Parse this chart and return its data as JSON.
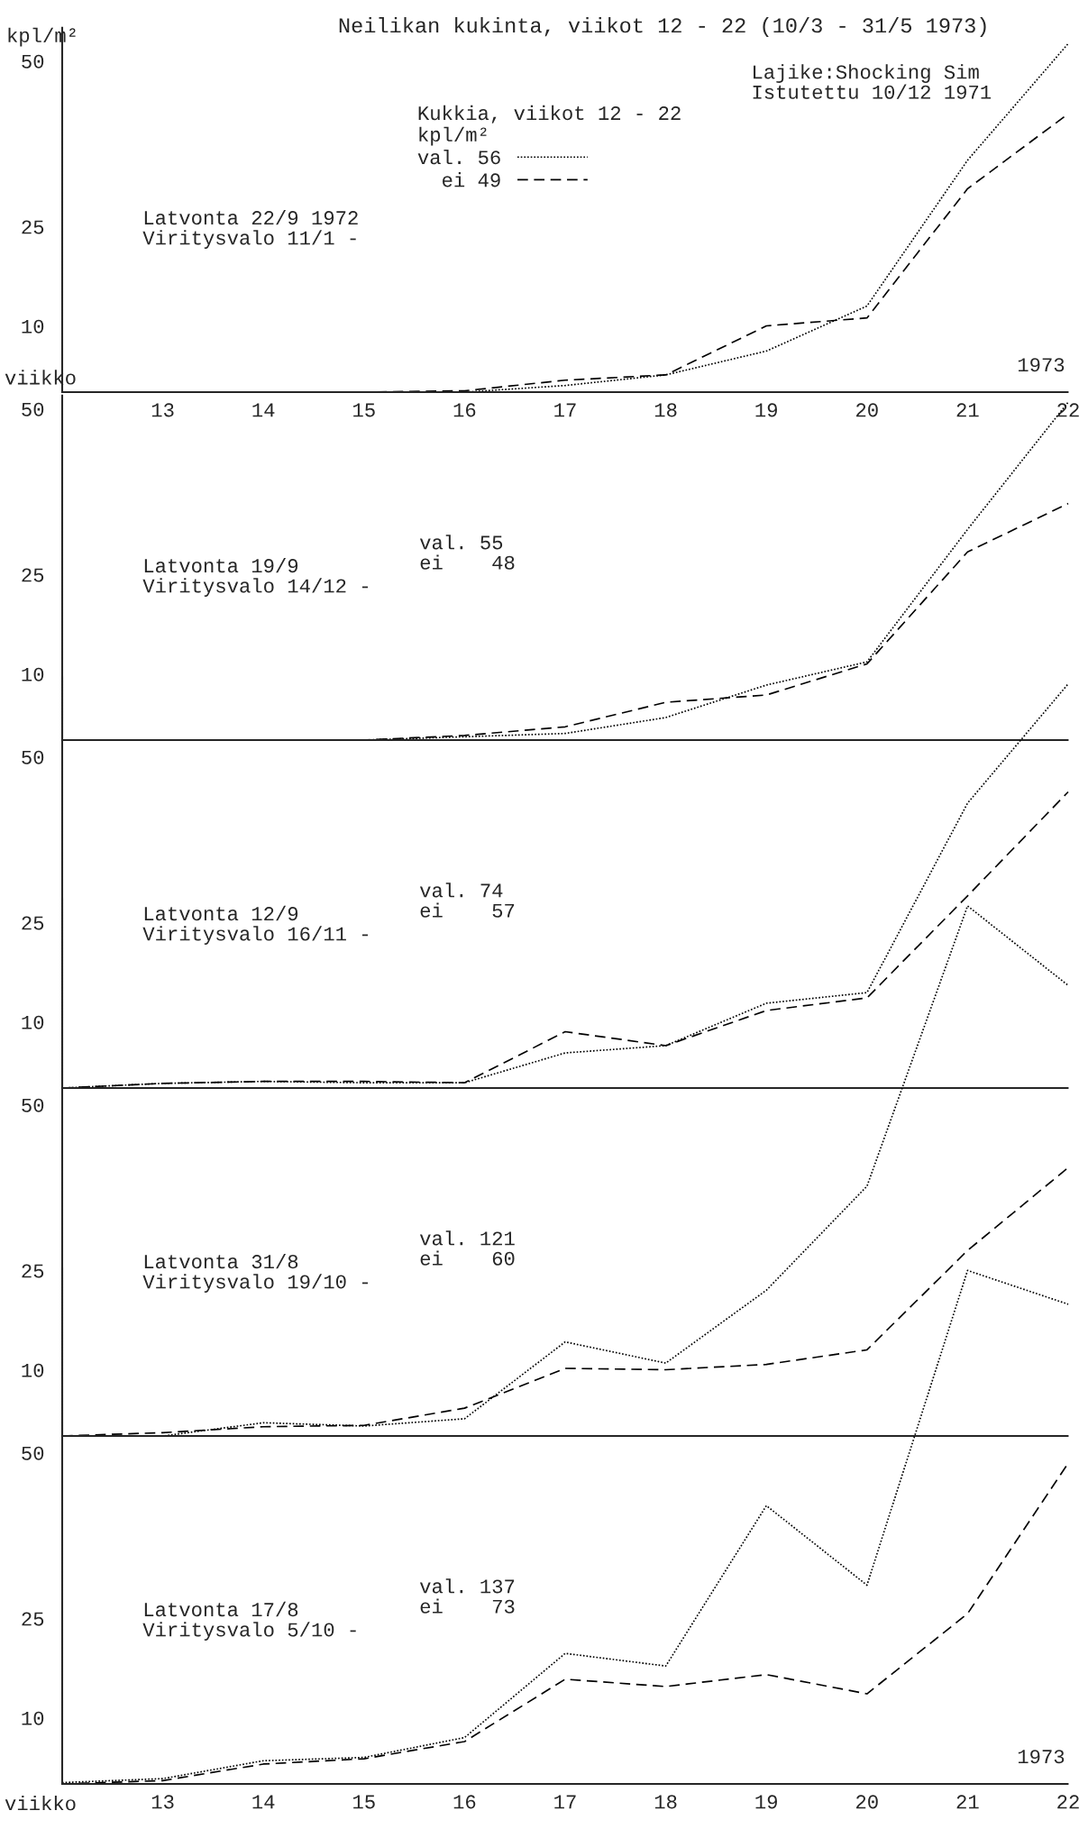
{
  "chart_data": [
    {
      "type": "line",
      "title": "Neilikan kukinta, viikot 12 - 22 (10/3 - 31/5 1973)",
      "ylabel": "kpl/m²",
      "xlabel": "viikko",
      "legend_title": "Kukkia, viikot 12 - 22\nkpl/m²",
      "legend": "top",
      "x": [
        12,
        13,
        14,
        15,
        16,
        17,
        18,
        19,
        20,
        21,
        22
      ],
      "xlim": [
        12,
        22
      ],
      "xticks": [
        13,
        14,
        15,
        16,
        17,
        18,
        19,
        20,
        21,
        22
      ],
      "ylim": [
        0,
        55
      ],
      "yticks": [
        10,
        25,
        50
      ],
      "grid": false,
      "series": [
        {
          "name": "val. 56",
          "color": "#000000",
          "line_style": "dotted",
          "values": [
            0,
            0,
            0,
            0,
            0,
            1,
            2.6,
            6.2,
            13,
            35,
            52.6
          ]
        },
        {
          "name": "ei 49",
          "color": "#000000",
          "line_style": "dashed",
          "values": [
            0,
            0,
            0,
            0,
            0.2,
            1.8,
            2.6,
            10,
            11.2,
            30.7,
            42
          ]
        }
      ],
      "annotations": [
        "Lajike:Shocking Sim\nIstutettu 10/12 1971",
        "Latvonta 22/9 1972\nViritysvalo 11/1 -",
        "1973"
      ]
    },
    {
      "type": "line",
      "x": [
        12,
        13,
        14,
        15,
        16,
        17,
        18,
        19,
        20,
        21,
        22
      ],
      "xlim": [
        12,
        22
      ],
      "xticks": [
        13,
        14,
        15,
        16,
        17,
        18,
        19,
        20,
        21,
        22
      ],
      "ylim": [
        0,
        52
      ],
      "yticks": [
        10,
        25,
        50
      ],
      "grid": false,
      "tick_labels": "y",
      "series": [
        {
          "color": "#000000",
          "line_style": "dotted",
          "values": [
            0,
            0,
            0,
            0,
            0.5,
            1,
            3.4,
            8.3,
            11.8,
            31.8,
            51
          ]
        },
        {
          "color": "#000000",
          "line_style": "dashed",
          "values": [
            0,
            0,
            0,
            0,
            0.7,
            2,
            5.7,
            6.8,
            11.5,
            28.4,
            35.7
          ]
        }
      ],
      "annotations": [
        "Latvonta 19/9\nViritysvalo 14/12 -",
        "val. 55\nei    48"
      ]
    },
    {
      "type": "line",
      "x": [
        12,
        13,
        14,
        15,
        16,
        17,
        18,
        19,
        20,
        21,
        22
      ],
      "xlim": [
        12,
        22
      ],
      "xticks": [
        13,
        14,
        15,
        16,
        17,
        18,
        19,
        20,
        21,
        22
      ],
      "ylim": [
        0,
        62
      ],
      "yticks": [
        10,
        25,
        50
      ],
      "grid": false,
      "tick_labels": "y",
      "series": [
        {
          "color": "#000000",
          "line_style": "dotted",
          "values": [
            0,
            0.7,
            1,
            0.8,
            0.8,
            5.3,
            6.4,
            12.8,
            14.4,
            43,
            61
          ]
        },
        {
          "color": "#000000",
          "line_style": "dashed",
          "values": [
            0,
            0.7,
            1,
            1,
            0.8,
            8.5,
            6.4,
            11.7,
            13.6,
            29,
            44.7
          ]
        }
      ],
      "annotations": [
        "Latvonta 12/9\nViritysvalo 16/11 -",
        "val. 74\nei    57"
      ]
    },
    {
      "type": "line",
      "x": [
        12,
        13,
        14,
        15,
        16,
        17,
        18,
        19,
        20,
        21,
        22
      ],
      "xlim": [
        12,
        22
      ],
      "xticks": [
        13,
        14,
        15,
        16,
        17,
        18,
        19,
        20,
        21,
        22
      ],
      "ylim": [
        0,
        81
      ],
      "yticks": [
        10,
        25,
        50
      ],
      "grid": false,
      "tick_labels": "y",
      "series": [
        {
          "color": "#000000",
          "line_style": "dotted",
          "values": [
            0,
            0,
            2,
            1.5,
            2.6,
            14.2,
            11,
            22,
            37.7,
            80,
            68
          ]
        },
        {
          "color": "#000000",
          "line_style": "dashed",
          "values": [
            0,
            0.5,
            1.4,
            1.6,
            4.2,
            10.2,
            10,
            10.8,
            13,
            28,
            40.5
          ]
        }
      ],
      "annotations": [
        "Latvonta 31/8\nViritysvalo 19/10 -",
        "val. 121\nei    60"
      ]
    },
    {
      "type": "line",
      "xlabel": "viikko",
      "x": [
        12,
        13,
        14,
        15,
        16,
        17,
        18,
        19,
        20,
        21,
        22
      ],
      "xlim": [
        12,
        22
      ],
      "xticks": [
        13,
        14,
        15,
        16,
        17,
        18,
        19,
        20,
        21,
        22
      ],
      "ylim": [
        0,
        78
      ],
      "yticks": [
        10,
        25,
        50
      ],
      "grid": false,
      "series": [
        {
          "color": "#000000",
          "line_style": "dotted",
          "values": [
            0.2,
            0.8,
            3.5,
            4,
            7,
            19.7,
            17.8,
            42,
            30,
            77.5,
            72.4
          ]
        },
        {
          "color": "#000000",
          "line_style": "dashed",
          "values": [
            0,
            0.5,
            3,
            3.8,
            6.4,
            15.8,
            14.7,
            16.5,
            13.6,
            25.7,
            48.4
          ]
        }
      ],
      "annotations": [
        "Latvonta 17/8\nViritysvalo 5/10 -",
        "val. 137\nei    73",
        "1973"
      ]
    }
  ]
}
